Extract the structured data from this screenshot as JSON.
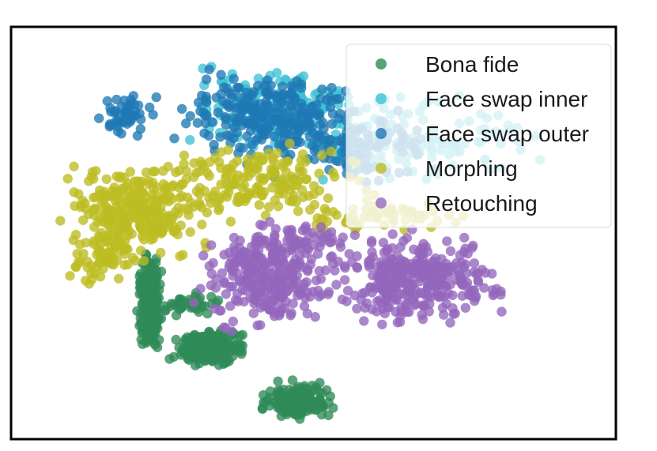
{
  "chart_data": {
    "type": "scatter",
    "title": "",
    "xlabel": "",
    "ylabel": "",
    "grid": false,
    "axes_ticks": false,
    "legend_position": "top-right",
    "xlim": [
      0,
      100
    ],
    "ylim": [
      0,
      100
    ],
    "point_opacity": 0.78,
    "series": [
      {
        "name": "Bona fide",
        "color": "#2e8b57",
        "clusters": [
          {
            "x": [
              20,
              25
            ],
            "y": [
              18,
              48
            ],
            "count": 220
          },
          {
            "x": [
              25,
              40
            ],
            "y": [
              16,
              28
            ],
            "count": 200
          },
          {
            "x": [
              40,
              54
            ],
            "y": [
              3,
              14
            ],
            "count": 150
          },
          {
            "x": [
              22,
              36
            ],
            "y": [
              28,
              36
            ],
            "count": 40
          }
        ]
      },
      {
        "name": "Face swap inner",
        "color": "#3ec2d3",
        "clusters": [
          {
            "x": [
              25,
              60
            ],
            "y": [
              68,
              93
            ],
            "count": 170
          },
          {
            "x": [
              40,
              95
            ],
            "y": [
              58,
              86
            ],
            "count": 120
          }
        ]
      },
      {
        "name": "Face swap outer",
        "color": "#1f78b4",
        "clusters": [
          {
            "x": [
              12,
              25
            ],
            "y": [
              72,
              86
            ],
            "count": 50
          },
          {
            "x": [
              25,
              60
            ],
            "y": [
              65,
              93
            ],
            "count": 230
          },
          {
            "x": [
              40,
              72
            ],
            "y": [
              60,
              84
            ],
            "count": 120
          }
        ]
      },
      {
        "name": "Morphing",
        "color": "#bcbd22",
        "clusters": [
          {
            "x": [
              5,
              35
            ],
            "y": [
              42,
              68
            ],
            "count": 280
          },
          {
            "x": [
              8,
              22
            ],
            "y": [
              35,
              52
            ],
            "count": 60
          },
          {
            "x": [
              20,
              62
            ],
            "y": [
              52,
              74
            ],
            "count": 180
          },
          {
            "x": [
              40,
              80
            ],
            "y": [
              48,
              60
            ],
            "count": 60
          }
        ]
      },
      {
        "name": "Retouching",
        "color": "#9467bd",
        "clusters": [
          {
            "x": [
              28,
              55
            ],
            "y": [
              24,
              52
            ],
            "count": 260
          },
          {
            "x": [
              50,
              84
            ],
            "y": [
              26,
              52
            ],
            "count": 340
          },
          {
            "x": [
              34,
              60
            ],
            "y": [
              40,
              55
            ],
            "count": 80
          }
        ]
      }
    ]
  }
}
